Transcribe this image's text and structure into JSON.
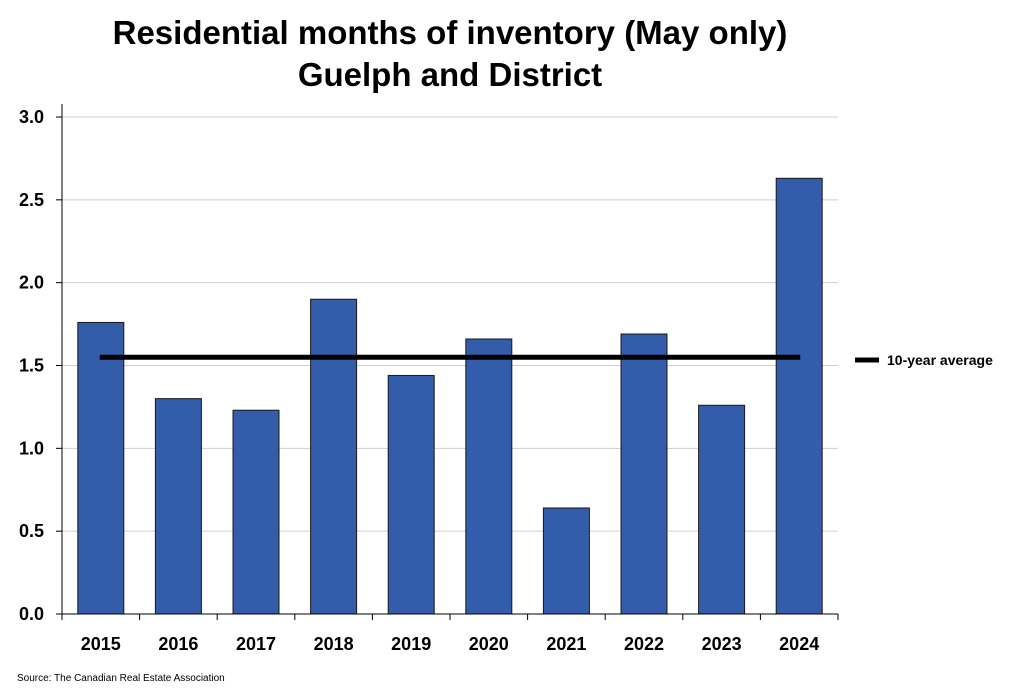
{
  "chart_data": {
    "type": "bar",
    "title_lines": [
      "Residential months of inventory (May only)",
      "Guelph and District"
    ],
    "categories": [
      "2015",
      "2016",
      "2017",
      "2018",
      "2019",
      "2020",
      "2021",
      "2022",
      "2023",
      "2024"
    ],
    "series": [
      {
        "name": "Months of inventory",
        "values": [
          1.76,
          1.3,
          1.23,
          1.9,
          1.44,
          1.66,
          0.64,
          1.69,
          1.26,
          2.63
        ],
        "color": "#335caa"
      }
    ],
    "reference_line": {
      "name": "10-year average",
      "value": 1.55,
      "color": "#000000"
    },
    "ylim": [
      0,
      3.0
    ],
    "yticks": [
      "0.0",
      "0.5",
      "1.0",
      "1.5",
      "2.0",
      "2.5",
      "3.0"
    ],
    "ytick_values": [
      0,
      0.5,
      1.0,
      1.5,
      2.0,
      2.5,
      3.0
    ],
    "xlabel": "",
    "ylabel": "",
    "grid": true,
    "legend": {
      "position": "right",
      "label": "10-year average"
    }
  },
  "source": "Source: The Canadian Real Estate Association"
}
